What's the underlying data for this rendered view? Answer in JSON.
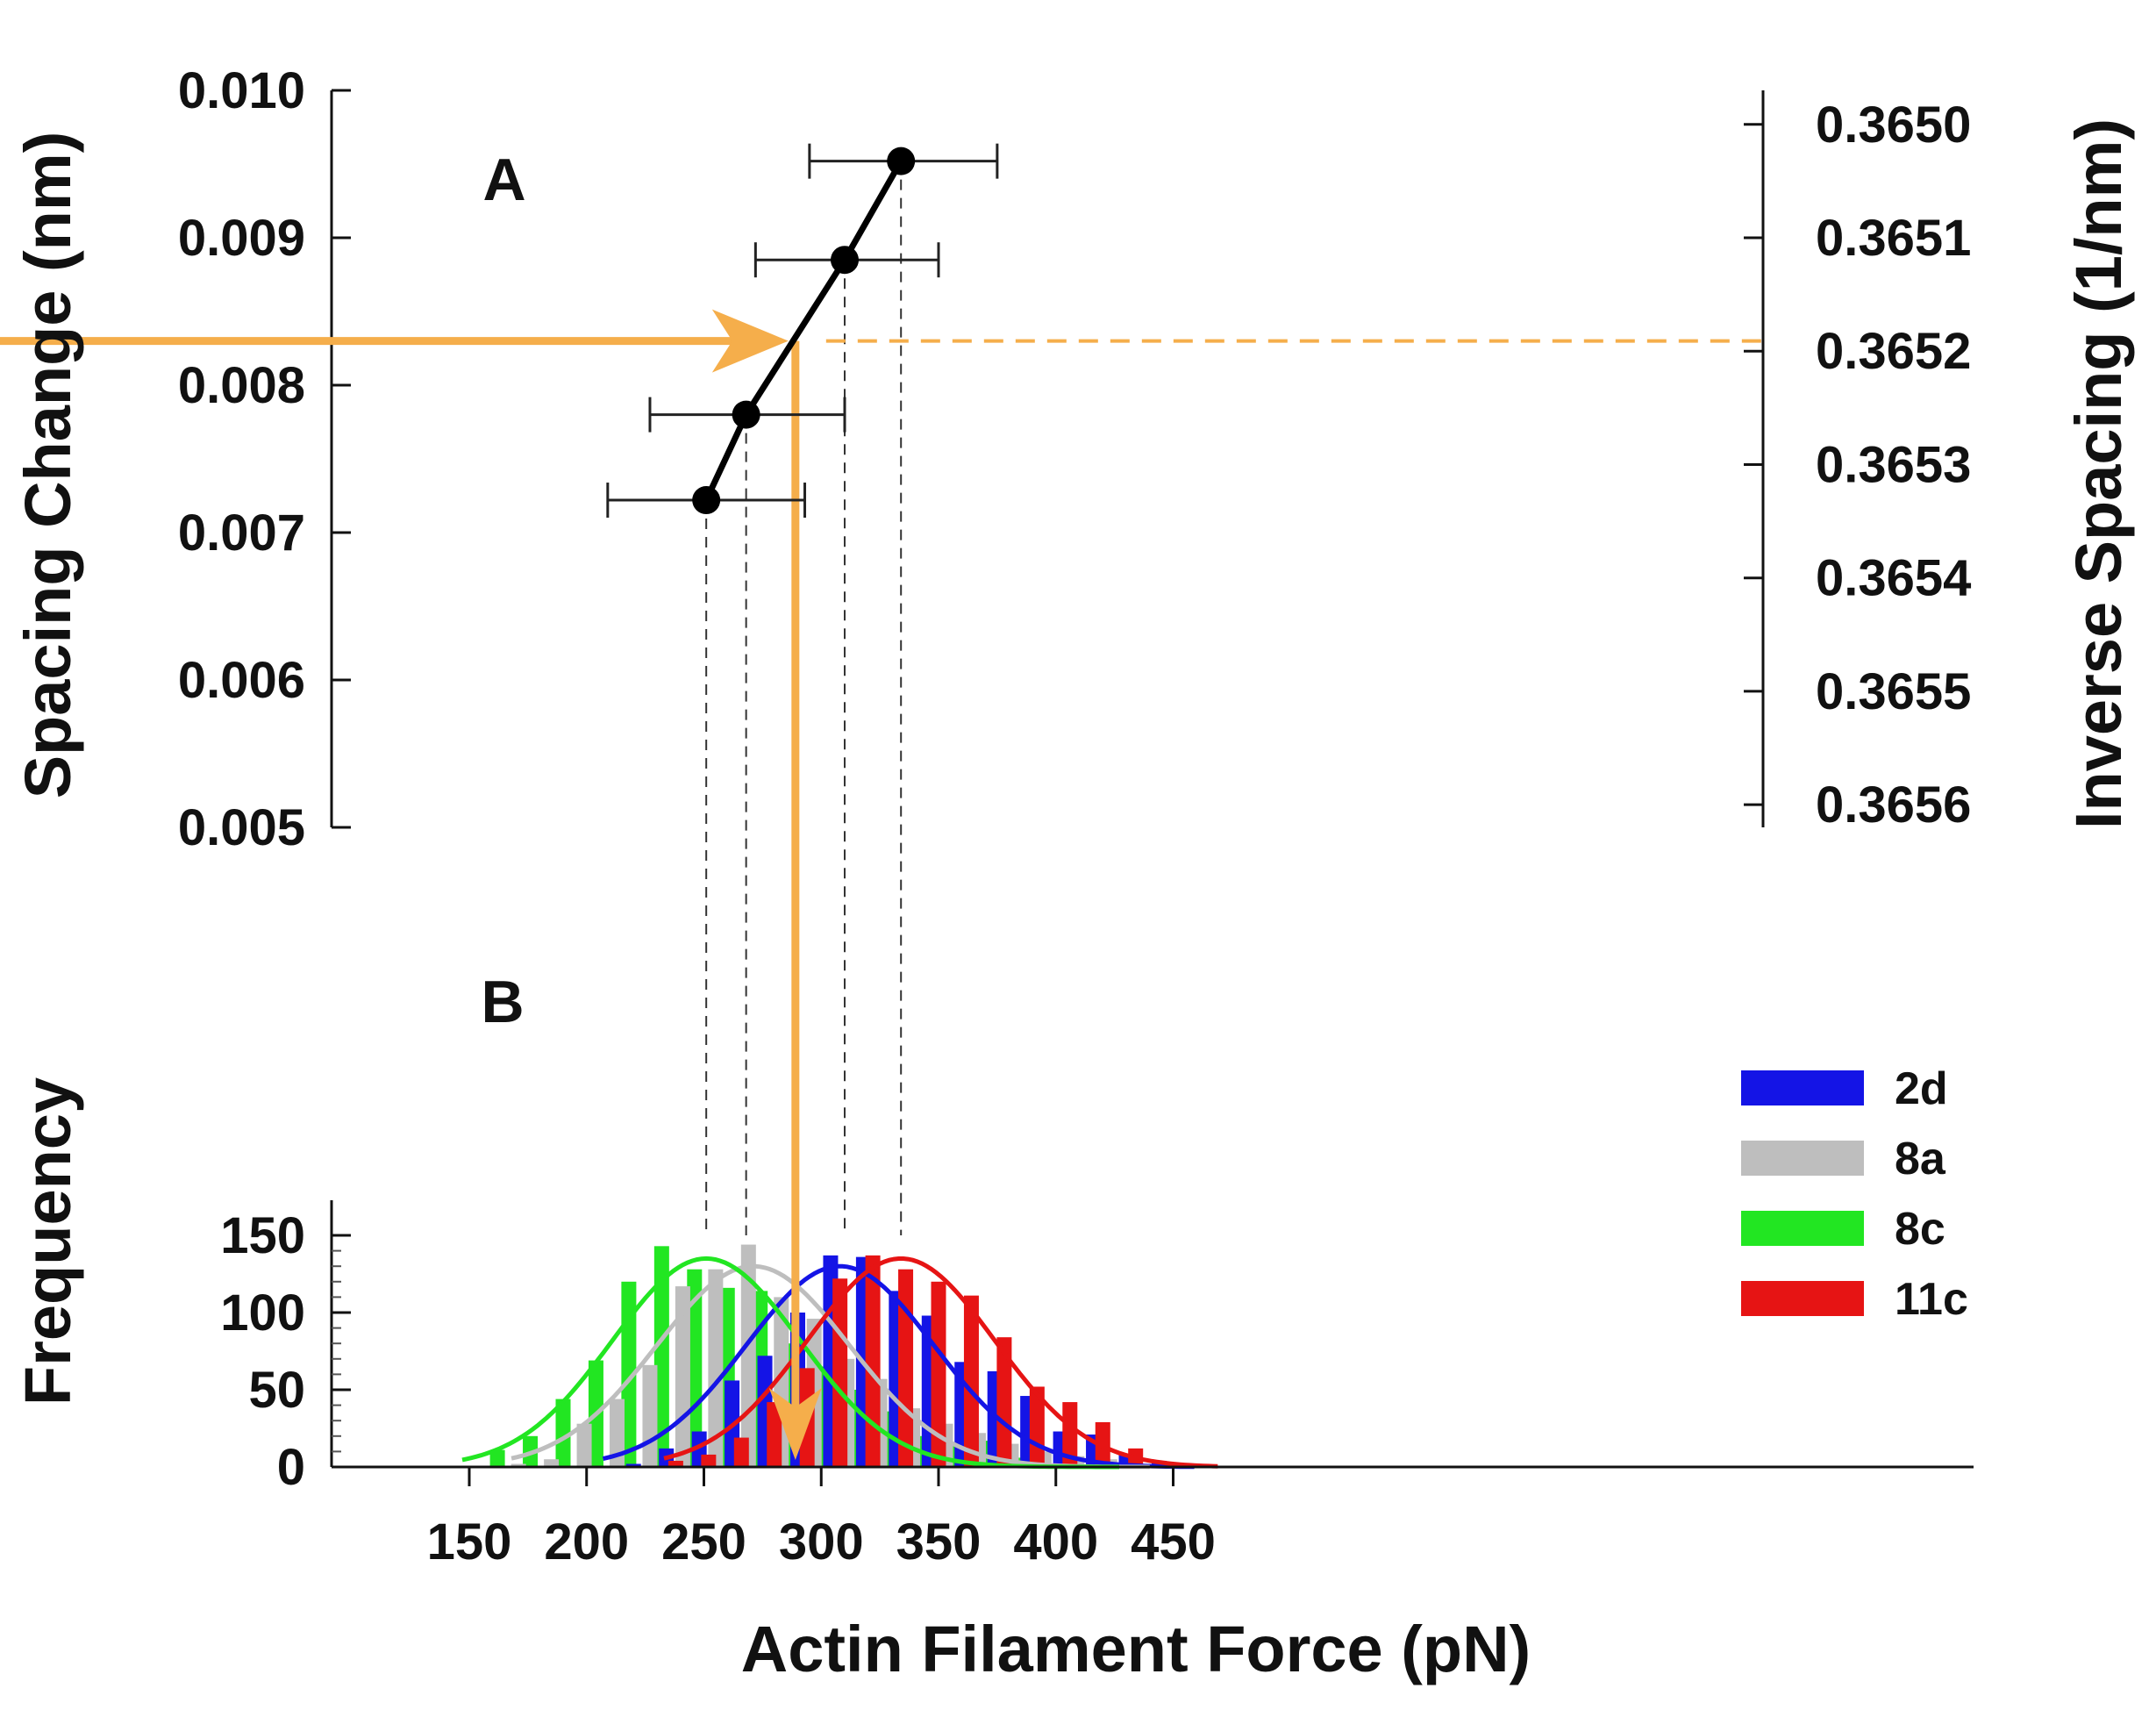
{
  "chart_data": [
    {
      "panel": "A",
      "type": "scatter",
      "panel_label": "A",
      "title": "",
      "ylabel": "Spacing Change (nm)",
      "ylim": [
        0.005,
        0.01
      ],
      "yticks": [
        "0.010",
        "0.009",
        "0.008",
        "0.007",
        "0.006",
        "0.005"
      ],
      "ylabel_right": "Inverse Spacing (1/nm)",
      "yticks_right": [
        "0.3650",
        "0.3651",
        "0.3652",
        "0.3653",
        "0.3654",
        "0.3655",
        "0.3656"
      ],
      "yticks_right_values": [
        0.365,
        0.3651,
        0.3652,
        0.3653,
        0.3654,
        0.3655,
        0.3656
      ],
      "right_axis_at_left_top": 0.01,
      "right_axis_at_left_bottom": 0.005,
      "right_axis_top_value": 0.36497,
      "right_axis_bottom_value": 0.36562,
      "xlim": [
        125,
        470
      ],
      "points": [
        {
          "x": 251,
          "y": 0.00722,
          "xerr_low": 209,
          "xerr_high": 293
        },
        {
          "x": 268,
          "y": 0.0078,
          "xerr_low": 227,
          "xerr_high": 310
        },
        {
          "x": 310,
          "y": 0.00885,
          "xerr_low": 272,
          "xerr_high": 350
        },
        {
          "x": 334,
          "y": 0.00952,
          "xerr_low": 295,
          "xerr_high": 375
        }
      ],
      "guide": {
        "x": 289,
        "y": 0.0083,
        "color": "#F5AE4B"
      },
      "line_color": "#000000"
    },
    {
      "panel": "B",
      "type": "bar",
      "panel_label": "B",
      "title": "",
      "xlabel": "Actin Filament Force (pN)",
      "ylabel": "Frequency",
      "xlim": [
        125,
        470
      ],
      "ylim": [
        0,
        160
      ],
      "xticks": [
        150,
        200,
        250,
        300,
        350,
        400,
        450
      ],
      "yticks": [
        0,
        50,
        100,
        150
      ],
      "bin_width": 14,
      "legend_position": "right",
      "series": [
        {
          "name": "2d",
          "color": "#1414E6",
          "x": [
            220,
            234,
            248,
            262,
            276,
            290,
            304,
            318,
            332,
            346,
            360,
            374,
            388,
            402,
            416,
            430,
            444
          ],
          "values": [
            2,
            12,
            23,
            56,
            72,
            100,
            137,
            136,
            114,
            98,
            68,
            62,
            46,
            23,
            21,
            8,
            4
          ],
          "fit": {
            "mean": 308,
            "sd": 40,
            "peak": 130,
            "x_start": 207,
            "x_end": 460
          }
        },
        {
          "name": "8a",
          "color": "#BEBEBE",
          "x": [
            171,
            185,
            199,
            213,
            227,
            241,
            255,
            269,
            283,
            297,
            311,
            325,
            339,
            353,
            367,
            381,
            395,
            409,
            423
          ],
          "values": [
            2,
            5,
            28,
            44,
            66,
            117,
            128,
            144,
            110,
            96,
            70,
            57,
            38,
            28,
            22,
            15,
            10,
            7,
            5
          ],
          "fit": {
            "mean": 271,
            "sd": 41,
            "peak": 130,
            "x_start": 168,
            "x_end": 440
          }
        },
        {
          "name": "8c",
          "color": "#22E622",
          "x": [
            162,
            176,
            190,
            204,
            218,
            232,
            246,
            260,
            274,
            288,
            302,
            316,
            330,
            344,
            358,
            372,
            386
          ],
          "values": [
            11,
            20,
            44,
            69,
            120,
            143,
            128,
            116,
            114,
            80,
            65,
            50,
            36,
            20,
            14,
            17,
            6
          ],
          "fit": {
            "mean": 251,
            "sd": 40,
            "peak": 135,
            "x_start": 147,
            "x_end": 427
          }
        },
        {
          "name": "11c",
          "color": "#E61414",
          "x": [
            238,
            252,
            266,
            280,
            294,
            308,
            322,
            336,
            350,
            364,
            378,
            392,
            406,
            420,
            434
          ],
          "values": [
            4,
            8,
            19,
            42,
            64,
            122,
            137,
            128,
            120,
            111,
            84,
            52,
            42,
            29,
            12
          ],
          "fit": {
            "mean": 334,
            "sd": 40,
            "peak": 135,
            "x_start": 233,
            "x_end": 470
          }
        }
      ]
    }
  ]
}
